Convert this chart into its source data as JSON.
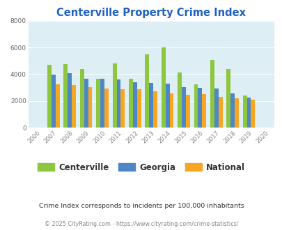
{
  "title": "Centerville Property Crime Index",
  "title_color": "#2060c0",
  "years": [
    "2006",
    "2007",
    "2008",
    "2009",
    "2010",
    "2011",
    "2012",
    "2013",
    "2014",
    "2015",
    "2016",
    "2017",
    "2018",
    "2019",
    "2020"
  ],
  "centerville": [
    0,
    4700,
    4750,
    4380,
    3650,
    4800,
    3650,
    5480,
    6020,
    4100,
    3250,
    5080,
    4360,
    2400,
    0
  ],
  "georgia": [
    0,
    3950,
    4050,
    3650,
    3650,
    3600,
    3380,
    3320,
    3310,
    3050,
    3000,
    2930,
    2580,
    2270,
    0
  ],
  "national": [
    0,
    3230,
    3160,
    3040,
    2950,
    2870,
    2870,
    2700,
    2580,
    2450,
    2490,
    2320,
    2190,
    2080,
    0
  ],
  "colors": {
    "centerville": "#8dc63f",
    "georgia": "#4f86c6",
    "national": "#f5a623"
  },
  "ylim": [
    0,
    8000
  ],
  "yticks": [
    0,
    2000,
    4000,
    6000,
    8000
  ],
  "bg_color": "#ddeef5",
  "subtitle": "Crime Index corresponds to incidents per 100,000 inhabitants",
  "footer": "© 2025 CityRating.com - https://www.cityrating.com/crime-statistics/",
  "bar_width": 0.25
}
